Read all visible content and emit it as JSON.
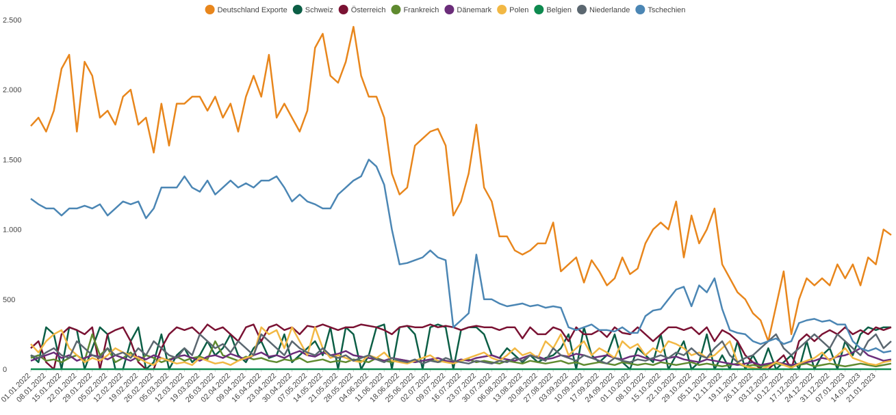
{
  "chart_data": {
    "type": "line",
    "ylim": [
      0,
      2500
    ],
    "yticks": [
      0,
      500,
      {
        "value": 1000,
        "label": "1.000"
      },
      {
        "value": 1500,
        "label": "1.500"
      },
      {
        "value": 2000,
        "label": "2.000"
      },
      {
        "value": 2500,
        "label": "2.500"
      }
    ],
    "legend": "top",
    "categories": [
      "01.01.2022",
      null,
      "08.01.2022",
      null,
      "15.01.2022",
      null,
      "22.01.2022",
      null,
      "29.01.2022",
      null,
      "05.02.2022",
      null,
      "12.02.2022",
      null,
      "19.02.2022",
      null,
      "26.02.2022",
      null,
      "05.03.2022",
      null,
      "12.03.2022",
      null,
      "19.03.2022",
      null,
      "26.03.2022",
      null,
      "02.04.2022",
      null,
      "09.04.2022",
      null,
      "16.04.2022",
      null,
      "23.04.2022",
      null,
      "30.04.2022",
      null,
      "07.05.2022",
      null,
      "14.05.2022",
      null,
      "21.05.2022",
      null,
      "28.05.2022",
      null,
      "04.06.2022",
      null,
      "11.06.2022",
      null,
      "18.06.2022",
      null,
      "25.06.2022",
      null,
      "02.07.2022",
      null,
      "09.07.2022",
      null,
      "16.07.2022",
      null,
      "23.07.2022",
      null,
      "30.07.2022",
      null,
      "06.08.2022",
      null,
      "13.08.2022",
      null,
      "20.08.2022",
      null,
      "27.08.2022",
      null,
      "03.09.2022",
      null,
      "10.09.2022",
      null,
      "17.09.2022",
      null,
      "24.09.2022",
      null,
      "01.10.2022",
      null,
      "08.10.2022",
      null,
      "15.10.2022",
      null,
      "22.10.2022",
      null,
      "29.10.2022",
      null,
      "05.11.2022",
      null,
      "12.11.2022",
      null,
      "19.11.2022",
      null,
      "26.11.2022",
      null,
      "03.12.2022",
      null,
      "10.12.2022",
      null,
      "17.12.2022",
      null,
      "24.12.2022",
      null,
      "31.12.2022",
      null,
      "07.01.2023",
      null,
      "14.01.2023",
      null,
      "21.01.2023",
      null,
      null
    ],
    "series": [
      {
        "name": "Deutschland Exporte",
        "color": "#e8861c",
        "values": [
          1740,
          1800,
          1700,
          1850,
          2150,
          2250,
          1700,
          2200,
          2100,
          1800,
          1850,
          1750,
          1950,
          2000,
          1750,
          1800,
          1550,
          1900,
          1600,
          1900,
          1900,
          1950,
          1950,
          1850,
          1950,
          1800,
          1900,
          1700,
          1950,
          2100,
          1950,
          2250,
          1800,
          1900,
          1800,
          1700,
          1850,
          2300,
          2400,
          2100,
          2050,
          2200,
          2450,
          2100,
          1950,
          1950,
          1800,
          1400,
          1250,
          1300,
          1600,
          1650,
          1700,
          1720,
          1600,
          1100,
          1200,
          1400,
          1750,
          1300,
          1200,
          950,
          950,
          850,
          820,
          850,
          900,
          900,
          1050,
          700,
          750,
          800,
          620,
          780,
          700,
          600,
          650,
          800,
          680,
          720,
          900,
          1000,
          1050,
          1000,
          1200,
          800,
          1100,
          900,
          1000,
          1150,
          750,
          650,
          550,
          500,
          400,
          350,
          200,
          450,
          700,
          250,
          500,
          650,
          600,
          650,
          600,
          750,
          650,
          750,
          600,
          800,
          750,
          1000,
          960
        ]
      },
      {
        "name": "Schweiz",
        "color": "#0b5e45",
        "values": [
          100,
          50,
          300,
          250,
          0,
          300,
          280,
          0,
          150,
          300,
          250,
          0,
          0,
          200,
          300,
          0,
          50,
          250,
          0,
          100,
          150,
          50,
          100,
          200,
          100,
          150,
          250,
          100,
          50,
          150,
          200,
          80,
          100,
          250,
          50,
          100,
          150,
          200,
          100,
          300,
          0,
          300,
          250,
          0,
          100,
          300,
          320,
          0,
          300,
          310,
          250,
          0,
          300,
          320,
          300,
          0,
          280,
          300,
          300,
          250,
          100,
          80,
          150,
          100,
          50,
          100,
          50,
          80,
          100,
          150,
          250,
          0,
          300,
          100,
          50,
          100,
          250,
          50,
          0,
          150,
          100,
          50,
          250,
          0,
          100,
          200,
          0,
          50,
          250,
          0,
          100,
          0,
          200,
          0,
          100,
          0,
          150,
          0,
          50,
          100,
          0,
          200,
          0,
          100,
          150,
          0,
          200,
          100,
          250,
          300,
          280,
          300,
          300
        ]
      },
      {
        "name": "Österreich",
        "color": "#7a1233",
        "values": [
          150,
          200,
          50,
          0,
          250,
          300,
          280,
          250,
          300,
          0,
          250,
          280,
          300,
          200,
          50,
          0,
          0,
          150,
          250,
          300,
          280,
          300,
          250,
          320,
          280,
          300,
          250,
          200,
          300,
          320,
          200,
          300,
          320,
          280,
          300,
          250,
          310,
          300,
          320,
          300,
          280,
          300,
          300,
          320,
          310,
          300,
          280,
          250,
          300,
          310,
          300,
          300,
          320,
          300,
          310,
          300,
          280,
          300,
          310,
          300,
          300,
          280,
          300,
          300,
          220,
          300,
          250,
          250,
          300,
          280,
          200,
          300,
          250,
          250,
          280,
          230,
          300,
          260,
          250,
          300,
          250,
          200,
          250,
          300,
          300,
          280,
          300,
          250,
          300,
          200,
          280,
          250,
          200,
          100,
          50,
          0,
          0,
          50,
          100,
          0,
          200,
          250,
          200,
          250,
          280,
          250,
          300,
          250,
          280,
          250,
          300,
          280,
          300
        ]
      },
      {
        "name": "Frankreich",
        "color": "#5f8a2f",
        "values": [
          80,
          100,
          60,
          70,
          50,
          80,
          100,
          60,
          250,
          100,
          150,
          50,
          80,
          120,
          60,
          100,
          80,
          50,
          70,
          90,
          60,
          80,
          90,
          70,
          200,
          100,
          80,
          60,
          90,
          70,
          80,
          60,
          50,
          70,
          60,
          80,
          50,
          60,
          70,
          50,
          60,
          50,
          70,
          60,
          50,
          80,
          60,
          50,
          70,
          60,
          50,
          60,
          70,
          50,
          60,
          50,
          60,
          70,
          50,
          60,
          50,
          40,
          60,
          50,
          40,
          60,
          50,
          40,
          50,
          60,
          40,
          50,
          30,
          40,
          50,
          40,
          30,
          50,
          40,
          30,
          40,
          30,
          50,
          40,
          30,
          40,
          50,
          30,
          40,
          30,
          20,
          30,
          40,
          20,
          30,
          20,
          30,
          40,
          30,
          20,
          30,
          40,
          20,
          30,
          40,
          30,
          20,
          30,
          40,
          30,
          20,
          30,
          40
        ]
      },
      {
        "name": "Dänemark",
        "color": "#6b2d7a",
        "values": [
          60,
          80,
          100,
          120,
          80,
          100,
          60,
          80,
          100,
          90,
          70,
          100,
          80,
          60,
          90,
          70,
          100,
          80,
          60,
          90,
          100,
          80,
          60,
          90,
          100,
          80,
          110,
          90,
          70,
          100,
          120,
          90,
          100,
          80,
          110,
          130,
          100,
          90,
          120,
          100,
          110,
          130,
          100,
          90,
          80,
          70,
          60,
          80,
          70,
          60,
          50,
          60,
          70,
          80,
          60,
          50,
          70,
          60,
          80,
          90,
          100,
          80,
          70,
          60,
          80,
          100,
          90,
          70,
          80,
          100,
          90,
          110,
          100,
          80,
          90,
          100,
          80,
          70,
          90,
          100,
          80,
          70,
          60,
          80,
          90,
          70,
          60,
          50,
          70,
          60,
          50,
          40,
          30,
          40,
          50,
          30,
          40,
          50,
          40,
          30,
          40,
          50,
          60,
          80,
          70,
          90,
          100,
          120,
          150,
          100,
          80,
          60,
          70
        ]
      },
      {
        "name": "Polen",
        "color": "#f2b844",
        "values": [
          180,
          120,
          200,
          250,
          280,
          150,
          100,
          50,
          80,
          60,
          100,
          150,
          120,
          100,
          80,
          50,
          30,
          80,
          60,
          40,
          50,
          30,
          80,
          60,
          40,
          50,
          30,
          60,
          80,
          100,
          300,
          250,
          280,
          150,
          300,
          200,
          100,
          300,
          150,
          80,
          100,
          80,
          60,
          50,
          100,
          80,
          120,
          60,
          50,
          40,
          60,
          80,
          100,
          60,
          50,
          40,
          60,
          80,
          100,
          120,
          80,
          60,
          100,
          150,
          100,
          120,
          80,
          200,
          150,
          250,
          100,
          150,
          200,
          100,
          150,
          120,
          80,
          200,
          150,
          180,
          100,
          150,
          120,
          200,
          180,
          150,
          100,
          120,
          80,
          100,
          150,
          200,
          50,
          20,
          10,
          0,
          20,
          50,
          30,
          10,
          40,
          60,
          80,
          120,
          60,
          100,
          150,
          80,
          60,
          40,
          30,
          50,
          60
        ]
      },
      {
        "name": "Belgien",
        "color": "#0e8a4f",
        "values": [
          0,
          0,
          0,
          0,
          0,
          0,
          0,
          0,
          0,
          0,
          0,
          0,
          0,
          0,
          0,
          0,
          0,
          0,
          0,
          0,
          0,
          0,
          0,
          0,
          0,
          0,
          0,
          0,
          0,
          0,
          0,
          0,
          0,
          0,
          0,
          0,
          0,
          0,
          0,
          0,
          0,
          0,
          0,
          0,
          0,
          0,
          0,
          0,
          0,
          0,
          0,
          0,
          0,
          0,
          0,
          0,
          0,
          0,
          0,
          0,
          0,
          0,
          0,
          0,
          0,
          0,
          0,
          0,
          0,
          0,
          0,
          0,
          0,
          0,
          0,
          0,
          0,
          0,
          0,
          0,
          0,
          0,
          0,
          0,
          0,
          0,
          0,
          0,
          0,
          0,
          0,
          0,
          0,
          0,
          0,
          0,
          0,
          0,
          0,
          0,
          0,
          0,
          0,
          0,
          0,
          0,
          0,
          0,
          0,
          0,
          0,
          0,
          0
        ]
      },
      {
        "name": "Niederlande",
        "color": "#5b6770",
        "values": [
          100,
          80,
          120,
          150,
          100,
          80,
          200,
          150,
          100,
          80,
          150,
          100,
          120,
          80,
          150,
          100,
          200,
          150,
          100,
          80,
          150,
          100,
          250,
          200,
          150,
          180,
          120,
          200,
          150,
          100,
          250,
          200,
          150,
          100,
          200,
          150,
          120,
          100,
          150,
          100,
          80,
          100,
          60,
          80,
          100,
          70,
          50,
          80,
          60,
          50,
          70,
          40,
          60,
          50,
          80,
          60,
          50,
          40,
          60,
          50,
          40,
          60,
          50,
          80,
          60,
          100,
          80,
          60,
          150,
          100,
          80,
          60,
          100,
          80,
          60,
          40,
          80,
          60,
          50,
          70,
          60,
          80,
          100,
          80,
          120,
          100,
          150,
          100,
          80,
          150,
          200,
          100,
          50,
          80,
          100,
          150,
          200,
          250,
          150,
          100,
          150,
          200,
          250,
          200,
          150,
          250,
          200,
          150,
          100,
          200,
          250,
          150,
          200
        ]
      },
      {
        "name": "Tschechien",
        "color": "#4b86b4",
        "values": [
          1220,
          1180,
          1150,
          1150,
          1100,
          1150,
          1150,
          1170,
          1150,
          1180,
          1100,
          1150,
          1200,
          1180,
          1200,
          1080,
          1150,
          1300,
          1300,
          1300,
          1380,
          1300,
          1270,
          1350,
          1250,
          1300,
          1350,
          1300,
          1330,
          1300,
          1350,
          1350,
          1380,
          1300,
          1200,
          1250,
          1200,
          1180,
          1150,
          1150,
          1250,
          1300,
          1350,
          1380,
          1500,
          1450,
          1320,
          1000,
          750,
          760,
          780,
          800,
          850,
          800,
          780,
          300,
          350,
          400,
          820,
          500,
          500,
          470,
          450,
          460,
          470,
          450,
          460,
          440,
          450,
          440,
          300,
          280,
          300,
          320,
          280,
          280,
          270,
          300,
          260,
          260,
          380,
          420,
          430,
          500,
          570,
          590,
          450,
          600,
          550,
          650,
          430,
          280,
          260,
          250,
          200,
          180,
          200,
          220,
          180,
          200,
          330,
          350,
          360,
          340,
          350,
          320,
          320,
          200,
          150,
          130,
          150,
          120,
          130
        ]
      }
    ]
  }
}
